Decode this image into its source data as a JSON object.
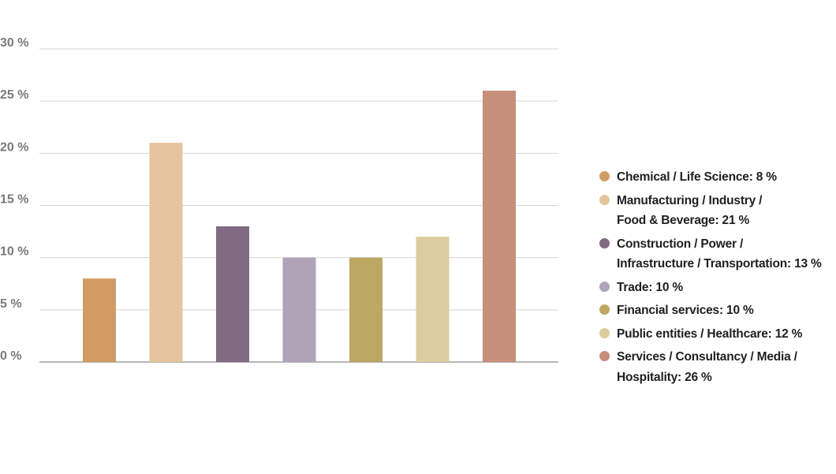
{
  "chart_data": {
    "type": "bar",
    "categories": [
      "Chemical / Life Science",
      "Manufacturing / Industry / Food & Beverage",
      "Construction / Power / Infrastructure / Transportation",
      "Trade",
      "Financial services",
      "Public entities / Healthcare",
      "Services / Consultancy / Media / Hospitality"
    ],
    "values": [
      8,
      21,
      13,
      10,
      10,
      12,
      26
    ],
    "colors": [
      "#d19c63",
      "#e6c49b",
      "#816b83",
      "#b0a2b7",
      "#bea664",
      "#dccc9e",
      "#c68f7a"
    ],
    "ylim": [
      0,
      30
    ],
    "yticks": [
      0,
      5,
      10,
      15,
      20,
      25,
      30
    ],
    "ytick_labels": [
      "0 %",
      "5 %",
      "10 %",
      "15 %",
      "20 %",
      "25 %",
      "30 %"
    ],
    "grid": true,
    "legend_position": "right",
    "legend": [
      "Chemical / Life Science: 8 %",
      "Manufacturing / Industry /\nFood & Beverage: 21 %",
      "Construction / Power /\nInfrastructure / Transportation: 13 %",
      "Trade: 10 %",
      "Financial services: 10 %",
      "Public entities / Healthcare: 12 %",
      "Services / Consultancy / Media /\nHospitality: 26 %"
    ],
    "title": "",
    "xlabel": "",
    "ylabel": ""
  }
}
